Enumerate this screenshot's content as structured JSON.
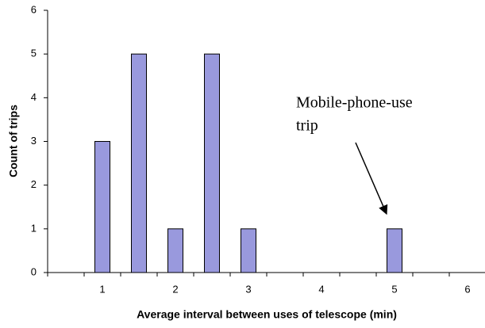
{
  "chart_data": {
    "type": "bar",
    "xlabel": "Average interval between uses of telescope (min)",
    "ylabel": "Count of trips",
    "categories": [
      null,
      "1",
      null,
      "2",
      null,
      "3",
      null,
      "4",
      null,
      "5",
      null,
      "6"
    ],
    "values": [
      0,
      3,
      5,
      1,
      5,
      1,
      0,
      0,
      0,
      1,
      0,
      0
    ],
    "color": "#9999dd",
    "ylim": [
      0,
      6
    ],
    "yticks": [
      0,
      1,
      2,
      3,
      4,
      5,
      6
    ],
    "grid": false,
    "annotation": [
      "Mobile-phone-use",
      "trip"
    ]
  }
}
